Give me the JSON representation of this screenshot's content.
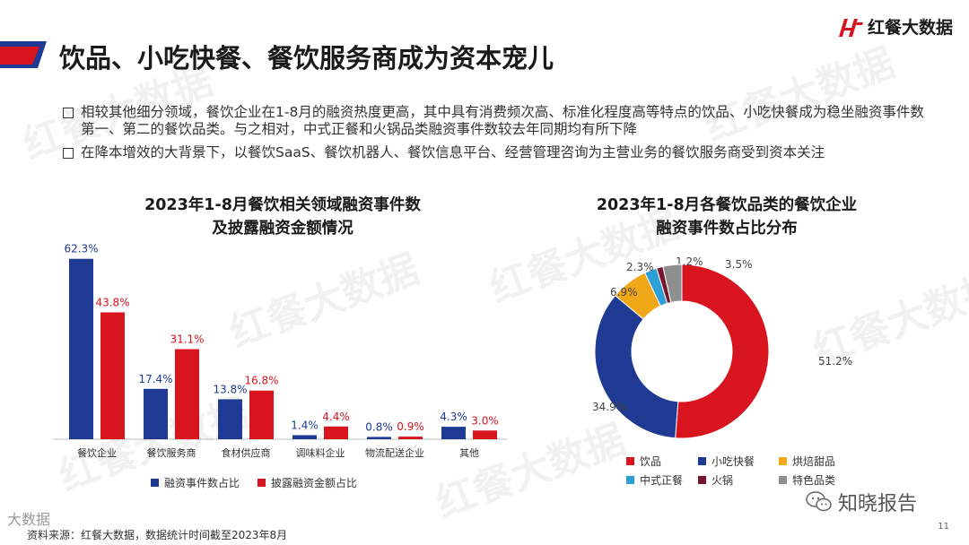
{
  "header": {
    "title": "饮品、小吃快餐、餐饮服务商成为资本宠儿",
    "logo_text": "红餐大数据"
  },
  "bullets": [
    "相较其他细分领域，餐饮企业在1-8月的融资热度更高，其中具有消费频次高、标准化程度高等特点的饮品、小吃快餐成为稳坐融资事件数第一、第二的餐饮品类。与之相对，中式正餐和火锅品类融资事件数较去年同期均有所下降",
    "在降本增效的大背景下，以餐饮SaaS、餐饮机器人、餐饮信息平台、经营管理咨询为主营业务的餐饮服务商受到资本关注"
  ],
  "chart_data": [
    {
      "type": "bar",
      "title_line1": "2023年1-8月餐饮相关领域融资事件数",
      "title_line2": "及披露融资金额情况",
      "categories": [
        "餐饮企业",
        "餐饮服务商",
        "食材供应商",
        "调味料企业",
        "物流配送企业",
        "其他"
      ],
      "series": [
        {
          "name": "融资事件数占比",
          "values": [
            62.3,
            17.4,
            13.8,
            1.4,
            0.8,
            4.3
          ],
          "labels": [
            "62.3%",
            "17.4%",
            "13.8%",
            "1.4%",
            "0.8%",
            "4.3%"
          ],
          "color": "#1f3a93"
        },
        {
          "name": "披露融资金额占比",
          "values": [
            43.8,
            31.1,
            16.8,
            4.4,
            0.9,
            3.0
          ],
          "labels": [
            "43.8%",
            "31.1%",
            "16.8%",
            "4.4%",
            "0.9%",
            "3.0%"
          ],
          "color": "#d8141f"
        }
      ],
      "ylim": [
        0,
        65
      ]
    },
    {
      "type": "pie",
      "title_line1": "2023年1-8月各餐饮品类的餐饮企业",
      "title_line2": "融资事件数占比分布",
      "slices": [
        {
          "name": "饮品",
          "value": 51.2,
          "label": "51.2%",
          "color": "#d8141f"
        },
        {
          "name": "小吃快餐",
          "value": 34.9,
          "label": "34.9%",
          "color": "#1f3a93"
        },
        {
          "name": "烘焙甜品",
          "value": 6.9,
          "label": "6.9%",
          "color": "#f0a818"
        },
        {
          "name": "中式正餐",
          "value": 2.3,
          "label": "2.3%",
          "color": "#2e9fd6"
        },
        {
          "name": "火锅",
          "value": 1.2,
          "label": "1.2%",
          "color": "#7a1530"
        },
        {
          "name": "特色品类",
          "value": 3.5,
          "label": "3.5%",
          "color": "#8f8f8f"
        }
      ]
    }
  ],
  "footer": {
    "source": "资料来源：红餐大数据，数据统计时间截至2023年8月",
    "zhixiao": "知晓报告",
    "page_number": "11",
    "brand": "大数据"
  },
  "watermark_text": "红餐大数据"
}
